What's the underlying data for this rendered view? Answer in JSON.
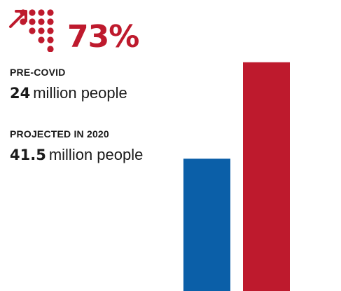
{
  "colors": {
    "accent": "#be1a2d",
    "blue": "#0b5fa8",
    "text": "#1a1a1a"
  },
  "icon": "growth-dots-arrow-icon",
  "headline": {
    "value": "73%"
  },
  "items": [
    {
      "label": "PRE-COVID",
      "number": "24",
      "unit": "million people"
    },
    {
      "label": "PROJECTED IN 2020",
      "number": "41.5",
      "unit": "million people"
    }
  ],
  "chart_data": {
    "type": "bar",
    "categories": [
      "Pre-COVID",
      "Projected in 2020"
    ],
    "values": [
      24,
      41.5
    ],
    "colors": [
      "#0b5fa8",
      "#be1a2d"
    ],
    "grid": false
  }
}
